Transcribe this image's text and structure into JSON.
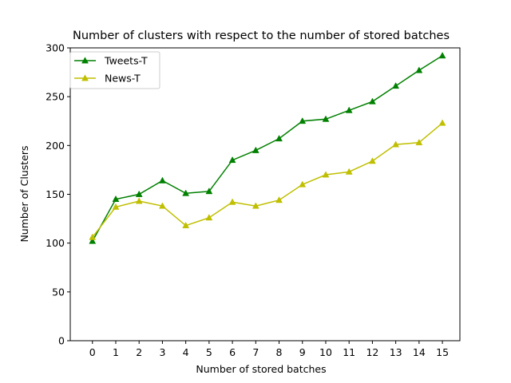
{
  "chart_data": {
    "type": "line",
    "title": "Number of clusters with respect to the number of stored batches",
    "xlabel": "Number of stored batches",
    "ylabel": "Number of Clusters",
    "x": [
      0,
      1,
      2,
      3,
      4,
      5,
      6,
      7,
      8,
      9,
      10,
      11,
      12,
      13,
      14,
      15
    ],
    "xlim": [
      -0.95,
      15.75
    ],
    "ylim": [
      0,
      300
    ],
    "yticks": [
      0,
      50,
      100,
      150,
      200,
      250,
      300
    ],
    "grid": false,
    "legend_position": "top-left",
    "series": [
      {
        "name": "Tweets-T",
        "color": "#008000",
        "marker": "triangle",
        "values": [
          102,
          145,
          150,
          164,
          151,
          153,
          185,
          195,
          207,
          225,
          227,
          236,
          245,
          261,
          277,
          292
        ]
      },
      {
        "name": "News-T",
        "color": "#bfbf00",
        "marker": "triangle",
        "values": [
          106,
          137,
          143,
          138,
          118,
          126,
          142,
          138,
          144,
          160,
          170,
          173,
          184,
          201,
          203,
          223
        ]
      }
    ]
  }
}
